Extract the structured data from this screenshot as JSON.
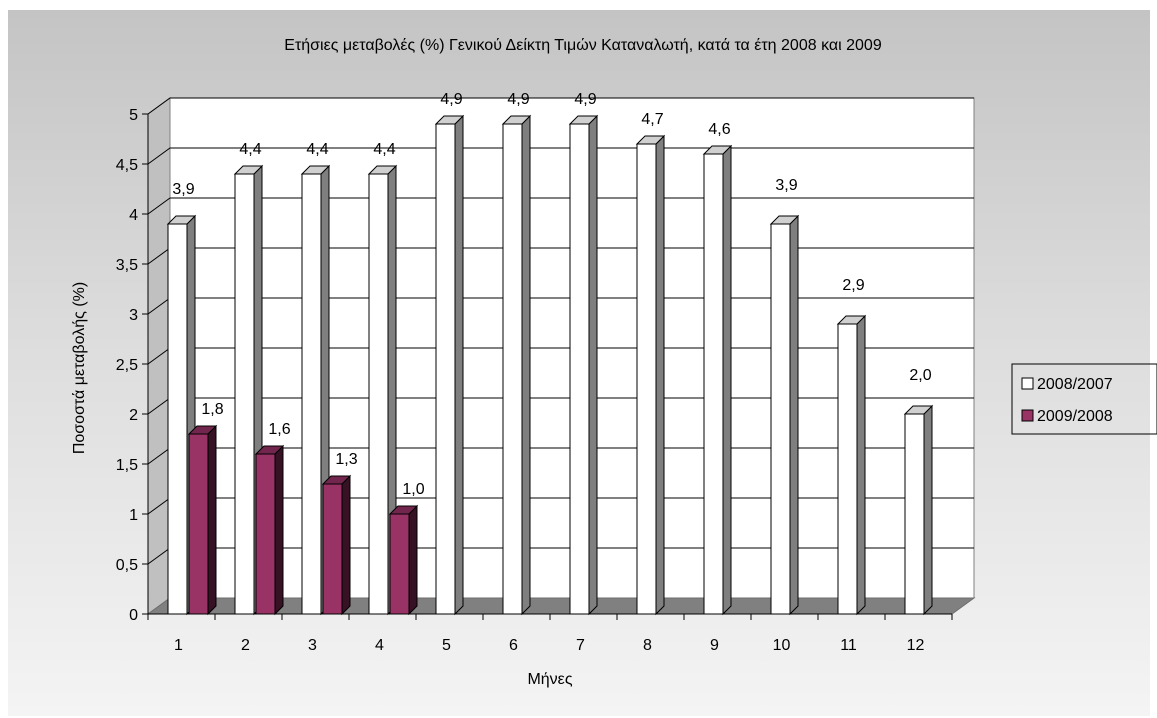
{
  "chart_data": {
    "type": "bar",
    "title": "Ετήσιες μεταβολές (%) Γενικού Δείκτη Τιμών Καταναλωτή, κατά τα έτη 2008 και 2009",
    "xlabel": "Μήνες",
    "ylabel": "Ποσοστά μεταβολής (%)",
    "categories": [
      "1",
      "2",
      "3",
      "4",
      "5",
      "6",
      "7",
      "8",
      "9",
      "10",
      "11",
      "12"
    ],
    "ylim": [
      0,
      5
    ],
    "y_ticks": [
      "0",
      "0,5",
      "1",
      "1,5",
      "2",
      "2,5",
      "3",
      "3,5",
      "4",
      "4,5",
      "5"
    ],
    "grid": true,
    "legend_position": "right",
    "series": [
      {
        "name": "2008/2007",
        "color": "#ffffff",
        "values": [
          3.9,
          4.4,
          4.4,
          4.4,
          4.9,
          4.9,
          4.9,
          4.7,
          4.6,
          3.9,
          2.9,
          2.0
        ],
        "labels": [
          "3,9",
          "4,4",
          "4,4",
          "4,4",
          "4,9",
          "4,9",
          "4,9",
          "4,7",
          "4,6",
          "3,9",
          "2,9",
          "2,0"
        ]
      },
      {
        "name": "2009/2008",
        "color": "#993366",
        "values": [
          1.8,
          1.6,
          1.3,
          1.0,
          null,
          null,
          null,
          null,
          null,
          null,
          null,
          null
        ],
        "labels": [
          "1,8",
          "1,6",
          "1,3",
          "1,0",
          "",
          "",
          "",
          "",
          "",
          "",
          "",
          ""
        ]
      }
    ]
  }
}
